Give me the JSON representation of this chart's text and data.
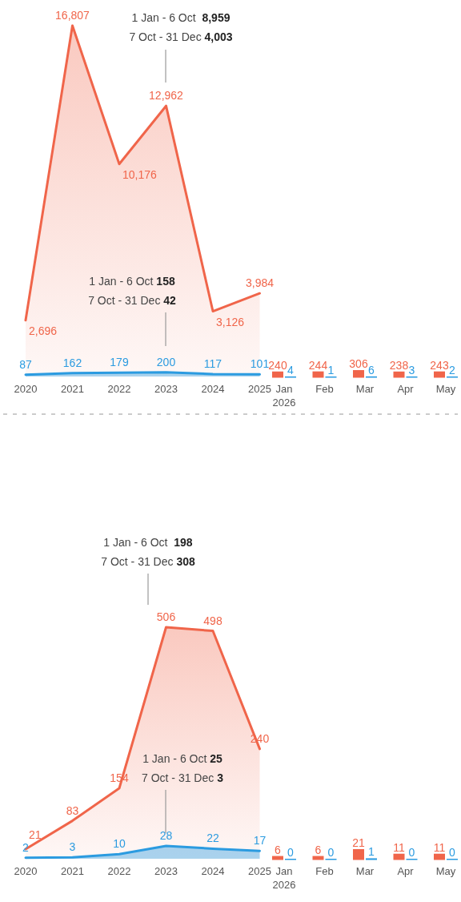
{
  "chart_data": [
    {
      "type": "area",
      "categories": [
        "2020",
        "2021",
        "2022",
        "2023",
        "2024",
        "2025",
        "Jan\n2026",
        "Feb",
        "Mar",
        "Apr",
        "May"
      ],
      "series": [
        {
          "color": "#f0654a",
          "values": [
            2696,
            16807,
            10176,
            12962,
            3126,
            3984,
            null,
            null,
            null,
            null,
            null
          ],
          "value_labels": [
            "2,696",
            "16,807",
            "10,176",
            "12,962",
            "3,126",
            "3,984",
            null,
            null,
            null,
            null,
            null
          ]
        },
        {
          "color": "#2b9be0",
          "values": [
            87,
            162,
            179,
            200,
            117,
            101,
            null,
            null,
            null,
            null,
            null
          ],
          "value_labels": [
            "87",
            "162",
            "179",
            "200",
            "117",
            "101",
            null,
            null,
            null,
            null,
            null
          ]
        },
        {
          "type": "bar",
          "color": "#f0654a",
          "values": [
            null,
            null,
            null,
            null,
            null,
            null,
            240,
            244,
            306,
            238,
            243
          ],
          "value_labels": [
            null,
            null,
            null,
            null,
            null,
            null,
            "240",
            "244",
            "306",
            "238",
            "243"
          ]
        },
        {
          "type": "bar",
          "color": "#2b9be0",
          "values": [
            null,
            null,
            null,
            null,
            null,
            null,
            4,
            1,
            6,
            3,
            2
          ],
          "value_labels": [
            null,
            null,
            null,
            null,
            null,
            null,
            "4",
            "1",
            "6",
            "3",
            "2"
          ]
        }
      ],
      "annotations": [
        "1 Jan - 6 Oct  8,959\n7 Oct - 31 Dec 4,003",
        "1 Jan - 6 Oct 158\n7 Oct - 31 Dec 42"
      ]
    },
    {
      "type": "area",
      "categories": [
        "2020",
        "2021",
        "2022",
        "2023",
        "2024",
        "2025",
        "Jan\n2026",
        "Feb",
        "Mar",
        "Apr",
        "May"
      ],
      "series": [
        {
          "color": "#f0654a",
          "values": [
            21,
            83,
            154,
            506,
            498,
            240,
            null,
            null,
            null,
            null,
            null
          ],
          "value_labels": [
            "21",
            "83",
            "154",
            "506",
            "498",
            "240",
            null,
            null,
            null,
            null,
            null
          ]
        },
        {
          "color": "#2b9be0",
          "values": [
            2,
            3,
            10,
            28,
            22,
            17,
            null,
            null,
            null,
            null,
            null
          ],
          "value_labels": [
            "2",
            "3",
            "10",
            "28",
            "22",
            "17",
            null,
            null,
            null,
            null,
            null
          ]
        },
        {
          "type": "bar",
          "color": "#f0654a",
          "values": [
            null,
            null,
            null,
            null,
            null,
            null,
            6,
            6,
            21,
            11,
            11
          ],
          "value_labels": [
            null,
            null,
            null,
            null,
            null,
            null,
            "6",
            "6",
            "21",
            "11",
            "11"
          ]
        },
        {
          "type": "bar",
          "color": "#2b9be0",
          "values": [
            null,
            null,
            null,
            null,
            null,
            null,
            0,
            0,
            1,
            0,
            0
          ],
          "value_labels": [
            null,
            null,
            null,
            null,
            null,
            null,
            "0",
            "0",
            "1",
            "0",
            "0"
          ]
        }
      ],
      "annotations": [
        "1 Jan - 6 Oct  198\n7 Oct - 31 Dec 308",
        "1 Jan - 6 Oct 25\n7 Oct - 31 Dec 3"
      ]
    }
  ]
}
